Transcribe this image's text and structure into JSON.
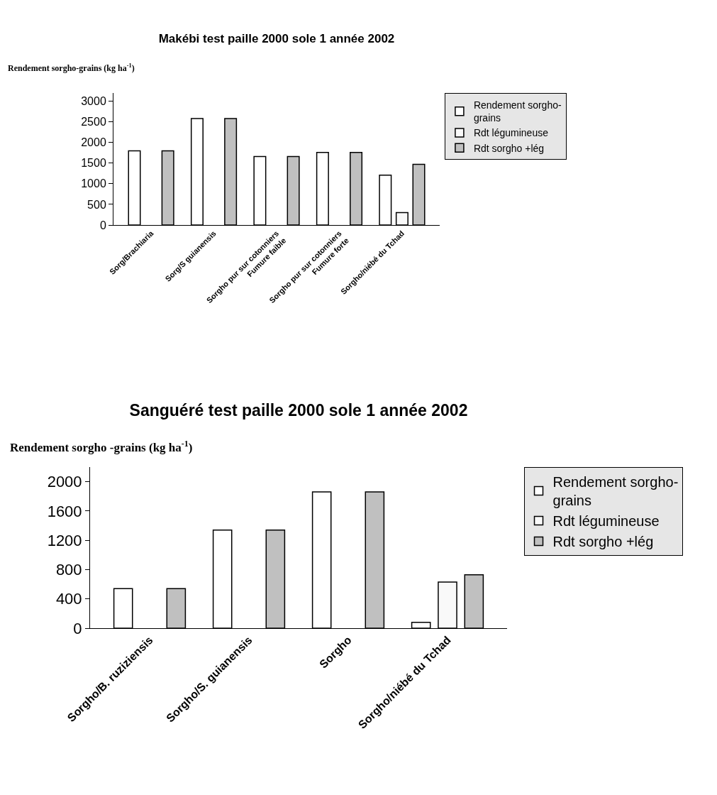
{
  "chart_data": [
    {
      "type": "bar",
      "title": "Makébi test paille 2000 sole 1 année 2002",
      "ylabel": "Rendement sorgho-grains (kg ha$^{-1}$)",
      "categories": [
        "Sorg/Brachiaria",
        "Sorg/S guianensis",
        "Sorgho pur sur cotonniers Fumure faible",
        "Sorgho pur sur cotonniers Fumure forte",
        "Sorgho/niébé du Tchad"
      ],
      "series": [
        {
          "name": "Rendement sorgho-grains",
          "color": "#ffffff",
          "values": [
            1800,
            2580,
            1660,
            1760,
            1210
          ]
        },
        {
          "name": "Rdt légumineuse",
          "color": "#f9f9f9",
          "values": [
            null,
            null,
            null,
            null,
            300
          ]
        },
        {
          "name": "Rdt sorgho +lég",
          "color": "#c0c0c0",
          "values": [
            1800,
            2580,
            1660,
            1760,
            1470
          ]
        }
      ],
      "ylim": [
        0,
        3200
      ],
      "yticks": [
        0,
        500,
        1000,
        1500,
        2000,
        2500,
        3000
      ],
      "legend": "right"
    },
    {
      "type": "bar",
      "title": "Sanguéré test paille 2000 sole 1 année 2002",
      "ylabel": "Rendement sorgho -grains (kg ha$^{-1}$)",
      "categories": [
        "Sorgho/B. ruziziensis",
        "Sorgho/S. guianensis",
        "Sorgho",
        "Sorgho/niébé du Tchad"
      ],
      "series": [
        {
          "name": "Rendement sorgho-grains",
          "color": "#ffffff",
          "values": [
            540,
            1340,
            1860,
            80
          ]
        },
        {
          "name": "Rdt légumineuse",
          "color": "#f9f9f9",
          "values": [
            null,
            null,
            null,
            630
          ]
        },
        {
          "name": "Rdt sorgho +lég",
          "color": "#c0c0c0",
          "values": [
            540,
            1340,
            1860,
            730
          ]
        }
      ],
      "ylim": [
        0,
        2200
      ],
      "yticks": [
        0,
        400,
        800,
        1200,
        1600,
        2000
      ],
      "legend": "right"
    }
  ]
}
